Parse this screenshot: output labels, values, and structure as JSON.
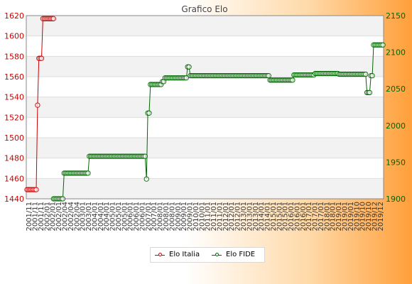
{
  "chart_data": {
    "type": "line",
    "title": "Grafico Elo",
    "xlabel": "",
    "ylabel": "",
    "left_axis": {
      "ylim": [
        1440,
        1620
      ],
      "ticks": [
        1440,
        1460,
        1480,
        1500,
        1520,
        1540,
        1560,
        1580,
        1600,
        1620
      ]
    },
    "right_axis": {
      "ylim": [
        1900,
        2150
      ],
      "ticks": [
        1900,
        1950,
        2000,
        2050,
        2100,
        2150
      ]
    },
    "grid": true,
    "legend_position": "bottom-center",
    "x_tick_labels": [
      "2001/11",
      "2002/01",
      "2002/04",
      "2003/01",
      "2004/01",
      "2005/01",
      "2006/01",
      "2007/01",
      "2008/01",
      "2009/01",
      "2010/01",
      "2011/01",
      "2012/01",
      "2013/01",
      "2014/01",
      "2015/01",
      "2016/01",
      "2017/01",
      "2018/01",
      "2019/01",
      "2019/10",
      "2019/12"
    ],
    "series": [
      {
        "name": "Elo Italia",
        "color": "#cc0000",
        "axis": "left",
        "x_start": 0,
        "values": [
          1449,
          1449,
          1449,
          1449,
          1449,
          1449,
          1449,
          1449,
          1532,
          1578,
          1578,
          1578,
          1617,
          1617,
          1617,
          1617,
          1617,
          1617,
          1617,
          1617,
          1617
        ]
      },
      {
        "name": "Elo FIDE",
        "color": "#006600",
        "axis": "right",
        "x_start": 20,
        "values": [
          1900,
          1900,
          1900,
          1900,
          1900,
          1900,
          1900,
          1900,
          1935,
          1935,
          1935,
          1935,
          1935,
          1935,
          1935,
          1935,
          1935,
          1935,
          1935,
          1935,
          1935,
          1935,
          1935,
          1935,
          1935,
          1935,
          1935,
          1958,
          1958,
          1958,
          1958,
          1958,
          1958,
          1958,
          1958,
          1958,
          1958,
          1958,
          1958,
          1958,
          1958,
          1958,
          1958,
          1958,
          1958,
          1958,
          1958,
          1958,
          1958,
          1958,
          1958,
          1958,
          1958,
          1958,
          1958,
          1958,
          1958,
          1958,
          1958,
          1958,
          1958,
          1958,
          1958,
          1958,
          1958,
          1958,
          1958,
          1958,
          1958,
          1958,
          1927,
          2017,
          2017,
          2056,
          2056,
          2056,
          2056,
          2056,
          2056,
          2056,
          2056,
          2056,
          2060,
          2060,
          2065,
          2065,
          2065,
          2065,
          2065,
          2065,
          2065,
          2065,
          2065,
          2065,
          2065,
          2065,
          2065,
          2065,
          2065,
          2065,
          2065,
          2080,
          2080,
          2068,
          2068,
          2068,
          2068,
          2068,
          2068,
          2068,
          2068,
          2068,
          2068,
          2068,
          2068,
          2068,
          2068,
          2068,
          2068,
          2068,
          2068,
          2068,
          2068,
          2068,
          2068,
          2068,
          2068,
          2068,
          2068,
          2068,
          2068,
          2068,
          2068,
          2068,
          2068,
          2068,
          2068,
          2068,
          2068,
          2068,
          2068,
          2068,
          2068,
          2068,
          2068,
          2068,
          2068,
          2068,
          2068,
          2068,
          2068,
          2068,
          2068,
          2068,
          2068,
          2068,
          2068,
          2068,
          2068,
          2068,
          2068,
          2068,
          2068,
          2062,
          2062,
          2062,
          2062,
          2062,
          2062,
          2062,
          2062,
          2062,
          2062,
          2062,
          2062,
          2062,
          2062,
          2062,
          2062,
          2062,
          2062,
          2069,
          2069,
          2069,
          2069,
          2069,
          2069,
          2069,
          2069,
          2069,
          2069,
          2069,
          2069,
          2069,
          2069,
          2069,
          2069,
          2071,
          2071,
          2071,
          2071,
          2071,
          2071,
          2071,
          2071,
          2071,
          2071,
          2071,
          2071,
          2071,
          2071,
          2071,
          2071,
          2071,
          2071,
          2070,
          2070,
          2070,
          2070,
          2070,
          2070,
          2070,
          2070,
          2070,
          2070,
          2070,
          2070,
          2070,
          2070,
          2070,
          2070,
          2070,
          2070,
          2070,
          2070,
          2070,
          2045,
          2045,
          2045,
          2068,
          2068,
          2110,
          2110,
          2110,
          2110,
          2110,
          2110,
          2110,
          2110
        ]
      }
    ]
  }
}
